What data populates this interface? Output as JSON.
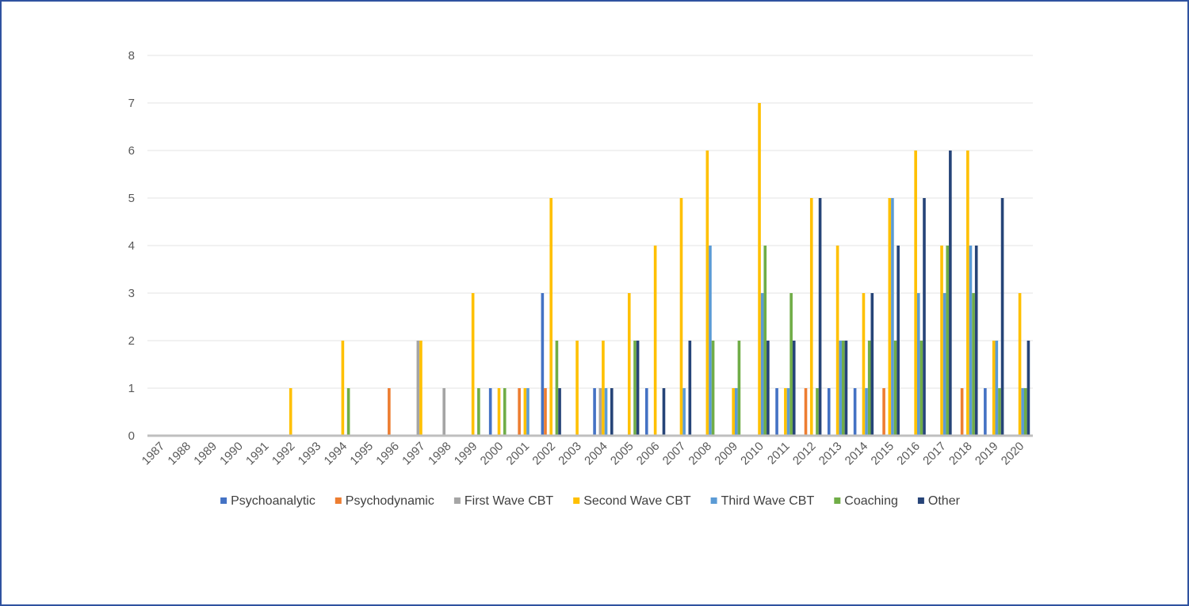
{
  "chart_data": {
    "type": "bar",
    "title": "",
    "xlabel": "",
    "ylabel": "",
    "ylim": [
      0,
      8
    ],
    "yticks": [
      "0",
      "1",
      "2",
      "3",
      "4",
      "5",
      "6",
      "7",
      "8"
    ],
    "grid": true,
    "legend_position": "bottom",
    "categories": [
      "1987",
      "1988",
      "1989",
      "1990",
      "1991",
      "1992",
      "1993",
      "1994",
      "1995",
      "1996",
      "1997",
      "1998",
      "1999",
      "2000",
      "2001",
      "2002",
      "2003",
      "2004",
      "2005",
      "2006",
      "2007",
      "2008",
      "2009",
      "2010",
      "2011",
      "2012",
      "2013",
      "2014",
      "2015",
      "2016",
      "2017",
      "2018",
      "2019",
      "2020"
    ],
    "series": [
      {
        "name": "Psychoanalytic",
        "color": "#4472c4",
        "values": [
          0,
          0,
          0,
          0,
          0,
          0,
          0,
          0,
          0,
          0,
          0,
          0,
          0,
          1,
          0,
          3,
          0,
          1,
          0,
          1,
          0,
          0,
          0,
          0,
          1,
          0,
          1,
          1,
          0,
          0,
          0,
          0,
          1,
          0
        ]
      },
      {
        "name": "Psychodynamic",
        "color": "#ed7d31",
        "values": [
          0,
          0,
          0,
          0,
          0,
          0,
          0,
          0,
          0,
          1,
          0,
          0,
          0,
          0,
          1,
          1,
          0,
          0,
          0,
          0,
          0,
          0,
          0,
          0,
          0,
          1,
          0,
          0,
          1,
          0,
          0,
          1,
          0,
          0
        ]
      },
      {
        "name": "First Wave CBT",
        "color": "#a5a5a5",
        "values": [
          0,
          0,
          0,
          0,
          0,
          0,
          0,
          0,
          0,
          0,
          2,
          1,
          0,
          0,
          0,
          0,
          0,
          1,
          0,
          0,
          0,
          0,
          0,
          0,
          0,
          0,
          0,
          0,
          0,
          0,
          0,
          0,
          0,
          0
        ]
      },
      {
        "name": "Second Wave CBT",
        "color": "#ffc000",
        "values": [
          0,
          0,
          0,
          0,
          0,
          1,
          0,
          2,
          0,
          0,
          2,
          0,
          3,
          1,
          1,
          5,
          2,
          2,
          3,
          4,
          5,
          6,
          1,
          7,
          1,
          5,
          4,
          3,
          5,
          6,
          4,
          6,
          2,
          3
        ]
      },
      {
        "name": "Third Wave CBT",
        "color": "#5b9bd5",
        "values": [
          0,
          0,
          0,
          0,
          0,
          0,
          0,
          0,
          0,
          0,
          0,
          0,
          0,
          0,
          1,
          0,
          0,
          1,
          0,
          0,
          1,
          4,
          1,
          3,
          1,
          0,
          2,
          1,
          5,
          3,
          3,
          4,
          2,
          1
        ]
      },
      {
        "name": "Coaching",
        "color": "#70ad47",
        "values": [
          0,
          0,
          0,
          0,
          0,
          0,
          0,
          1,
          0,
          0,
          0,
          0,
          1,
          1,
          0,
          2,
          0,
          0,
          2,
          0,
          0,
          2,
          2,
          4,
          3,
          1,
          2,
          2,
          2,
          2,
          4,
          3,
          1,
          1
        ]
      },
      {
        "name": "Other",
        "color": "#264478",
        "values": [
          0,
          0,
          0,
          0,
          0,
          0,
          0,
          0,
          0,
          0,
          0,
          0,
          0,
          0,
          0,
          1,
          0,
          1,
          2,
          1,
          2,
          0,
          0,
          2,
          2,
          5,
          2,
          3,
          4,
          5,
          6,
          4,
          5,
          2
        ]
      }
    ]
  }
}
